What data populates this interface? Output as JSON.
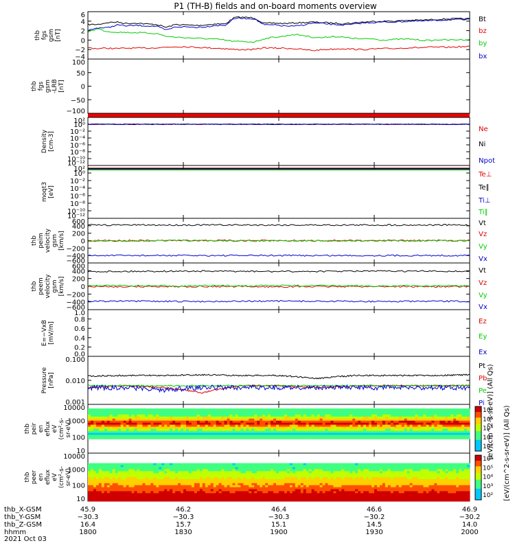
{
  "title": "P1 (TH-B) fields and on-board moments overview",
  "colors": {
    "black": "#000000",
    "red": "#e00000",
    "green": "#00cc00",
    "blue": "#0000cc"
  },
  "chart_data": [
    {
      "type": "line",
      "ylabel": [
        "thb",
        "fgs",
        "gsm",
        "[nT]"
      ],
      "yticks": [
        "6",
        "4",
        "2",
        "0",
        "−2",
        "−4"
      ],
      "ylim": [
        -4,
        6
      ],
      "series": [
        {
          "name": "Bt",
          "color": "black",
          "values": [
            3.3,
            3.3,
            3.7,
            3.8,
            3.5,
            3.6,
            3.4,
            3.3,
            2.7,
            3.3,
            3.2,
            3.1,
            3.2,
            3.4,
            3.4,
            4.8,
            4.8,
            4.7,
            3.5,
            3.6,
            3.5,
            3.6,
            3.7,
            3.8,
            3.7,
            3.6,
            3.5,
            3.6,
            3.8,
            3.9,
            4.0,
            4.0,
            4.1,
            4.2,
            4.2,
            4.3,
            4.4,
            4.5,
            4.5,
            4.5
          ]
        },
        {
          "name": "bz",
          "color": "red",
          "values": [
            -1.6,
            -1.8,
            -1.7,
            -1.8,
            -1.7,
            -1.7,
            -1.7,
            -1.6,
            -1.5,
            -1.4,
            -1.4,
            -1.5,
            -1.6,
            -1.7,
            -1.8,
            -2.0,
            -2.0,
            -2.0,
            -1.6,
            -1.7,
            -1.7,
            -1.8,
            -2.0,
            -2.2,
            -2.0,
            -1.9,
            -1.8,
            -1.9,
            -2.0,
            -1.9,
            -1.8,
            -1.8,
            -1.7,
            -1.6,
            -1.6,
            -1.5,
            -1.5,
            -1.5,
            -1.4,
            -1.4
          ]
        },
        {
          "name": "by",
          "color": "green",
          "values": [
            1.8,
            2.4,
            1.8,
            1.7,
            1.6,
            1.6,
            1.5,
            1.4,
            0.8,
            0.6,
            0.5,
            0.4,
            0.3,
            0.2,
            0.0,
            -0.3,
            -0.3,
            -0.4,
            0.3,
            0.6,
            0.8,
            1.2,
            1.0,
            0.6,
            0.5,
            0.8,
            0.6,
            0.4,
            0.2,
            0.3,
            0.0,
            0.1,
            0.2,
            0.2,
            0.0,
            -0.1,
            0.1,
            0.0,
            0.1,
            0.1
          ]
        },
        {
          "name": "bx",
          "color": "blue",
          "values": [
            2.0,
            2.6,
            2.6,
            3.2,
            3.0,
            3.1,
            3.0,
            2.9,
            2.1,
            2.8,
            2.8,
            2.7,
            2.8,
            3.1,
            3.1,
            4.6,
            4.6,
            4.5,
            3.2,
            3.2,
            3.0,
            2.9,
            3.2,
            3.6,
            3.5,
            3.3,
            3.2,
            3.3,
            3.6,
            3.7,
            3.8,
            3.8,
            3.9,
            4.0,
            4.0,
            4.1,
            4.2,
            4.3,
            4.3,
            4.3
          ]
        }
      ]
    },
    {
      "type": "line",
      "ylabel": [
        "thb",
        "fgs",
        "gsm",
        "-LRB",
        "[nT]"
      ],
      "yticks": [
        "100",
        "50",
        "0",
        "−50",
        "−100"
      ],
      "ylim": [
        -130,
        100
      ],
      "note_series": [
        {
          "color": "red",
          "band": "bottom-edge"
        }
      ]
    },
    {
      "type": "line",
      "ylabel": [
        "Density",
        "[cm-3]"
      ],
      "yticks": [
        "10²",
        "10⁰",
        "10⁻²",
        "10⁻⁴",
        "10⁻⁶",
        "10⁻⁸",
        "10⁻¹⁰",
        "10⁻¹²"
      ],
      "series": [
        {
          "name": "Ne",
          "color": "red",
          "values": [
            0.5,
            0.5,
            0.5
          ]
        },
        {
          "name": "Ni",
          "color": "black",
          "values": [
            0.5,
            0.5,
            0.5
          ]
        },
        {
          "name": "Npot",
          "color": "blue",
          "values": [
            0.5,
            0.5,
            0.5
          ]
        }
      ]
    },
    {
      "type": "line",
      "ylabel": [
        "moqt3",
        "[eV]"
      ],
      "yticks": [
        "10²",
        "10⁰",
        "10⁻²",
        "10⁻⁴",
        "10⁻⁶",
        "10⁻⁸",
        "10⁻¹⁰",
        "10⁻¹²"
      ],
      "series": [
        {
          "name": "Te⊥",
          "color": "red"
        },
        {
          "name": "Te∥",
          "color": "black"
        },
        {
          "name": "Ti⊥",
          "color": "blue"
        },
        {
          "name": "Ti∥",
          "color": "green"
        }
      ]
    },
    {
      "type": "line",
      "ylabel": [
        "thb",
        "peim",
        "velocity",
        "gsm",
        "[km/s]"
      ],
      "yticks": [
        "600",
        "400",
        "200",
        "0",
        "−200",
        "−400",
        "−600"
      ],
      "ylim": [
        -600,
        600
      ],
      "series": [
        {
          "name": "Vt",
          "color": "black",
          "values": [
            420,
            420,
            420,
            420,
            420
          ]
        },
        {
          "name": "Vz",
          "color": "red",
          "values": [
            0,
            5,
            0,
            5,
            0
          ]
        },
        {
          "name": "Vy",
          "color": "green",
          "values": [
            -10,
            0,
            -10,
            0,
            -5
          ]
        },
        {
          "name": "Vx",
          "color": "blue",
          "values": [
            -400,
            -400,
            -400,
            -400,
            -400
          ]
        }
      ]
    },
    {
      "type": "line",
      "ylabel": [
        "thb",
        "peem",
        "velocity",
        "gsm",
        "[km/s]"
      ],
      "yticks": [
        "600",
        "400",
        "200",
        "0",
        "−200",
        "−400",
        "−600"
      ],
      "ylim": [
        -600,
        600
      ],
      "series": [
        {
          "name": "Vt",
          "color": "black",
          "values": [
            380,
            390,
            380,
            390,
            385
          ]
        },
        {
          "name": "Vz",
          "color": "red",
          "values": [
            -10,
            -5,
            -10,
            -5,
            -10
          ]
        },
        {
          "name": "Vy",
          "color": "green",
          "values": [
            20,
            10,
            20,
            10,
            15
          ]
        },
        {
          "name": "Vx",
          "color": "blue",
          "values": [
            -380,
            -390,
            -380,
            -390,
            -385
          ]
        }
      ]
    },
    {
      "type": "line",
      "ylabel": [
        "E=−VxB",
        "[mV/m]"
      ],
      "yticks": [
        "1.0",
        "0.8",
        "0.6",
        "0.4",
        "0.2",
        "0.0"
      ],
      "ylim": [
        0,
        1
      ],
      "series": [
        {
          "name": "Ez",
          "color": "red"
        },
        {
          "name": "Ey",
          "color": "green"
        },
        {
          "name": "Ex",
          "color": "blue"
        }
      ]
    },
    {
      "type": "line",
      "ylabel": [
        "Pressure",
        "[nPa]"
      ],
      "yticks": [
        "0.100",
        "0.010",
        "0.001"
      ],
      "ylim": [
        0.001,
        0.1
      ],
      "scale": "log",
      "series": [
        {
          "name": "Pt",
          "color": "black",
          "values": [
            0.015,
            0.016,
            0.016,
            0.017,
            0.016,
            0.016,
            0.012,
            0.016,
            0.016,
            0.016,
            0.017
          ]
        },
        {
          "name": "Pb",
          "color": "red",
          "values": [
            0.005,
            0.006,
            0.005,
            0.003,
            0.006,
            0.006,
            0.005,
            0.006,
            0.006,
            0.006,
            0.006
          ]
        },
        {
          "name": "Pe",
          "color": "green",
          "values": [
            0.006,
            0.006,
            0.006,
            0.006,
            0.006,
            0.006,
            0.006,
            0.006,
            0.006,
            0.006,
            0.006
          ]
        },
        {
          "name": "Pi",
          "color": "blue",
          "values": [
            0.005,
            0.005,
            0.004,
            0.005,
            0.005,
            0.005,
            0.005,
            0.005,
            0.005,
            0.005,
            0.005
          ]
        }
      ]
    },
    {
      "type": "heatmap",
      "ylabel": [
        "thb",
        "peir",
        "en",
        "eflux",
        "eV",
        "(cm²-s-",
        "sr-eV)"
      ],
      "yticks": [
        "10000",
        "1000",
        "100",
        "10"
      ],
      "scale": "log"
    },
    {
      "type": "heatmap",
      "ylabel": [
        "thb",
        "peer",
        "en",
        "eflux",
        "eV",
        "(cm²-s-",
        "sr-eV)"
      ],
      "yticks": [
        "10000",
        "1000",
        "100",
        "10"
      ],
      "scale": "log"
    }
  ],
  "colorbar": {
    "ticks": [
      "10⁶",
      "10⁵",
      "10⁴",
      "10³",
      "10²"
    ],
    "label": "[eV/(cm^2-s-sr-eV)] (All Qs)"
  },
  "overlap_label": "[eV/(cm^2-s-sr-eV)] (All Qs)",
  "xaxis": {
    "rows": [
      {
        "label": "thb_X-GSM",
        "values": [
          "45.9",
          "46.2",
          "46.4",
          "46.6",
          "46.9"
        ]
      },
      {
        "label": "thb_Y-GSM",
        "values": [
          "−30.3",
          "−30.3",
          "−30.3",
          "−30.2",
          "−30.2"
        ]
      },
      {
        "label": "thb_Z-GSM",
        "values": [
          "16.4",
          "15.7",
          "15.1",
          "14.5",
          "14.0"
        ]
      },
      {
        "label": "hhmm",
        "values": [
          "1800",
          "1830",
          "1900",
          "1930",
          "2000"
        ]
      }
    ],
    "date": "2021 Oct 03"
  }
}
